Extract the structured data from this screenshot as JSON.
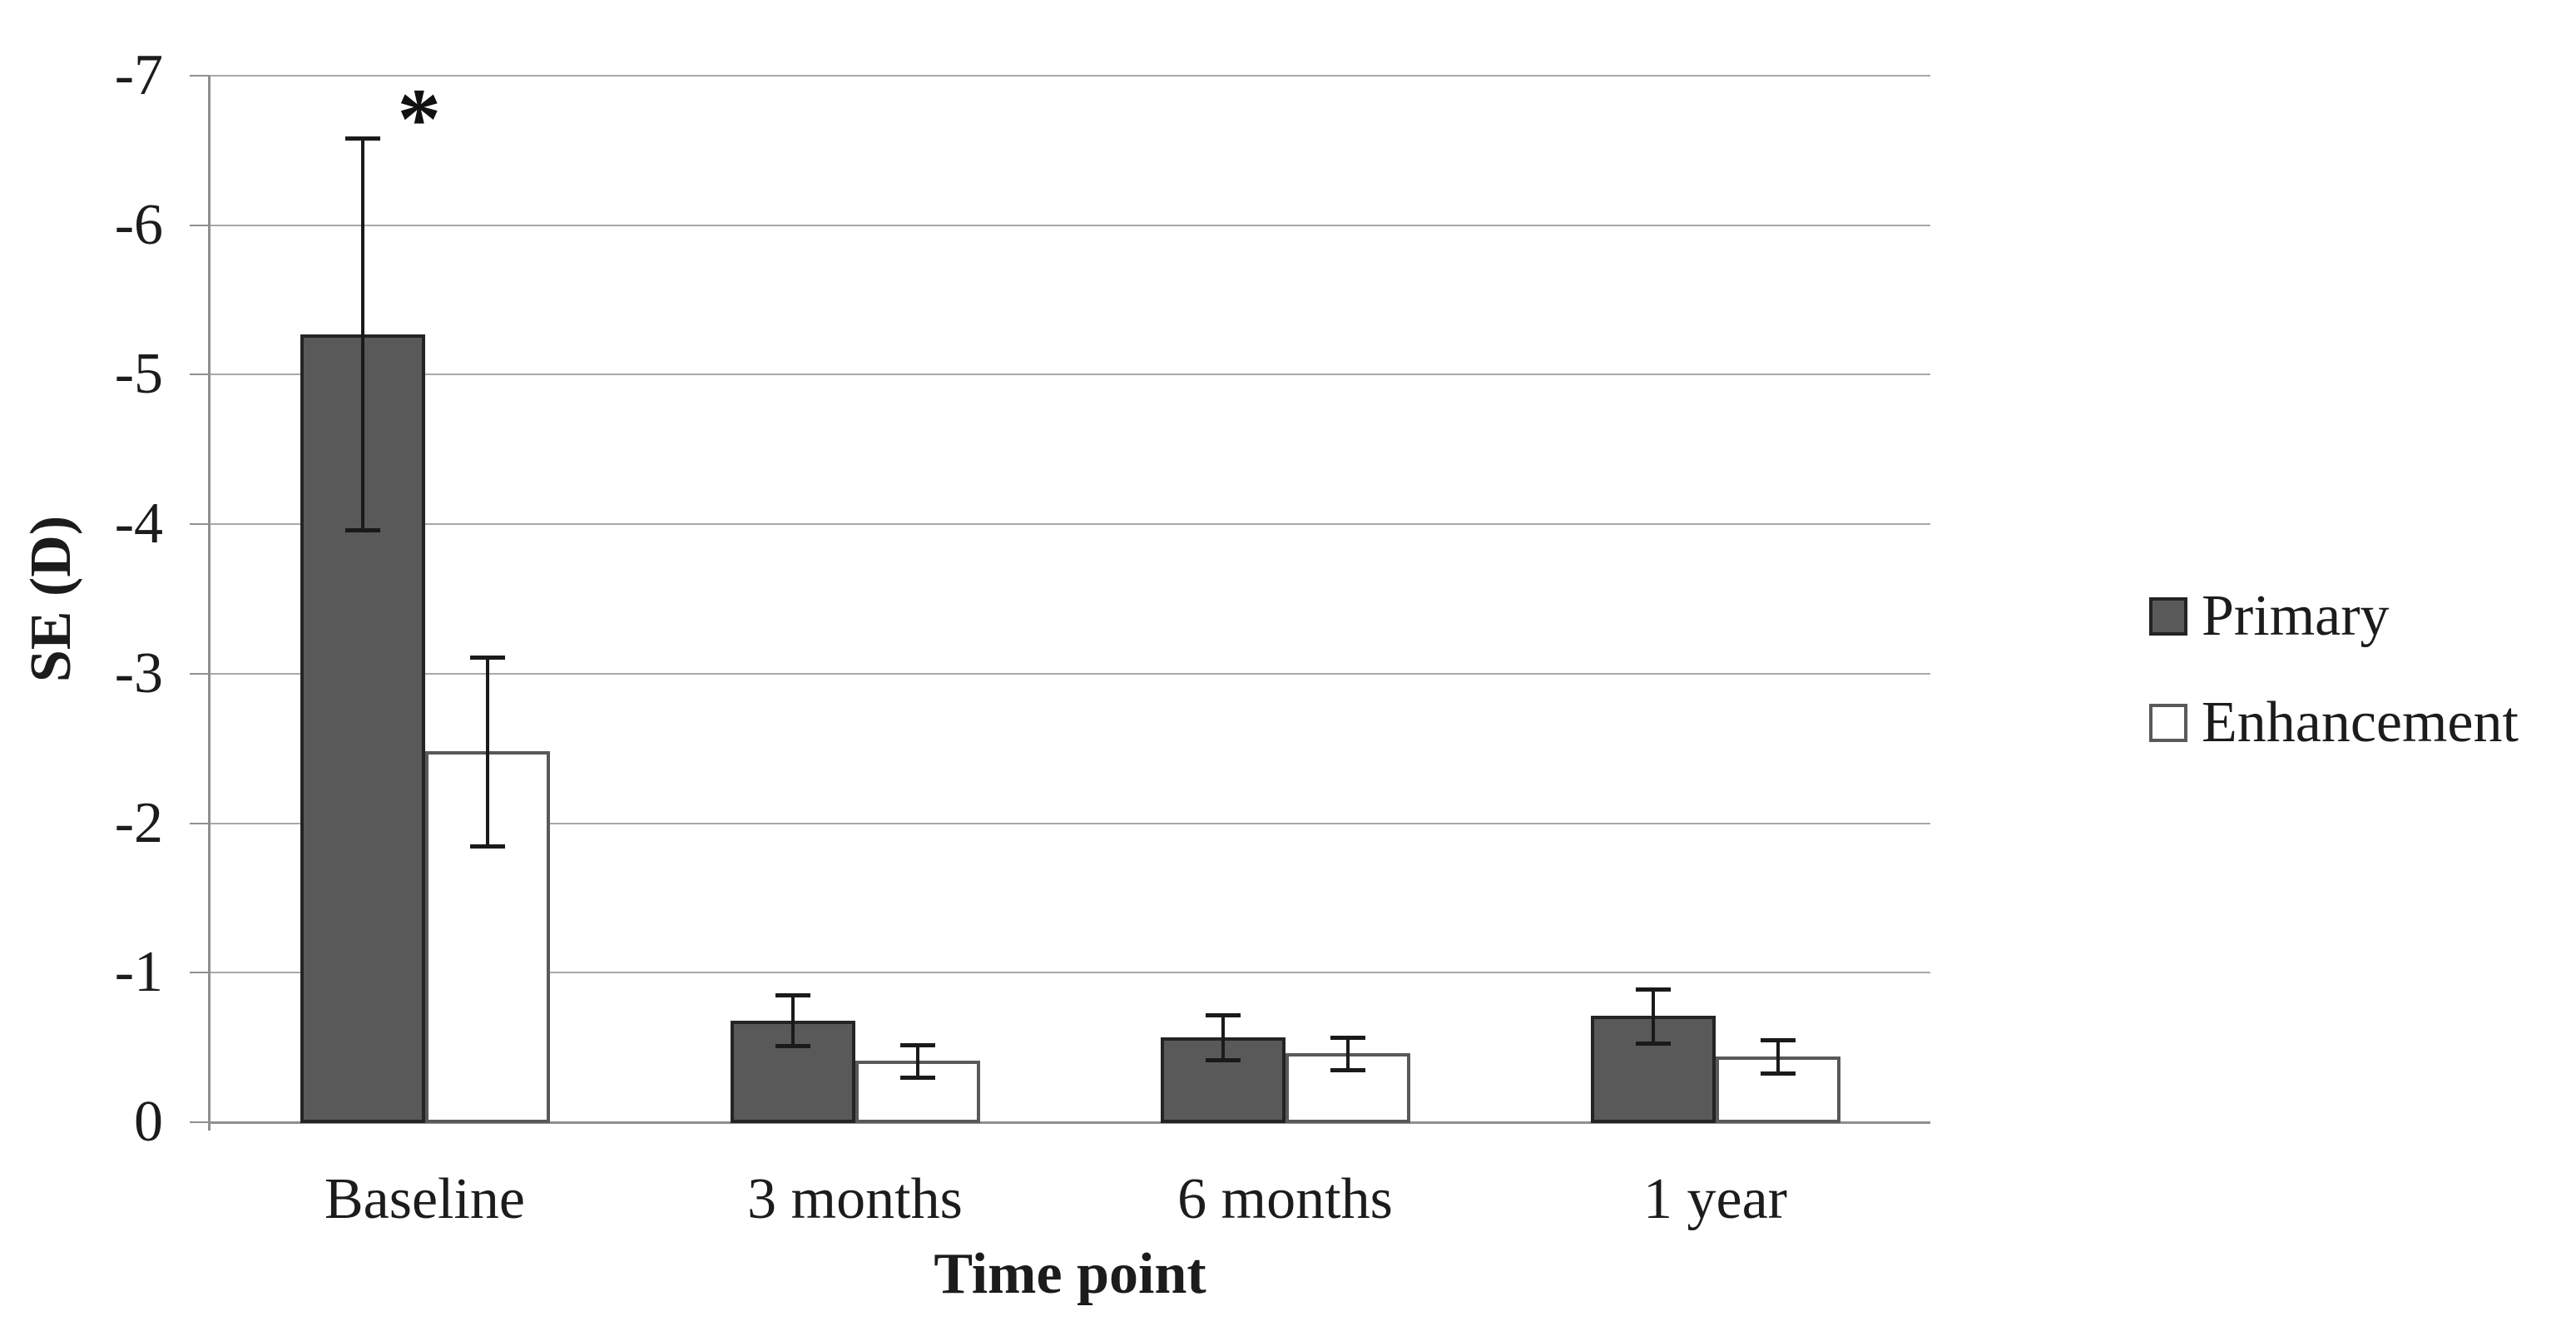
{
  "figure": {
    "background": "#ffffff"
  },
  "chart_data": {
    "type": "bar",
    "title": "",
    "xlabel": "Time point",
    "ylabel": "SE (D)",
    "categories": [
      "Baseline",
      "3 months",
      "6 months",
      "1 year"
    ],
    "series": [
      {
        "name": "Primary",
        "fill": "#595959",
        "border": "#242424",
        "values": [
          -5.27,
          -0.68,
          -0.57,
          -0.71
        ],
        "errors": [
          1.31,
          0.17,
          0.15,
          0.18
        ]
      },
      {
        "name": "Enhancement",
        "fill": "#ffffff",
        "border": "#595959",
        "values": [
          -2.48,
          -0.41,
          -0.46,
          -0.44
        ],
        "errors": [
          0.63,
          0.11,
          0.11,
          0.11
        ]
      }
    ],
    "y_axis": {
      "min": 0,
      "max": -7,
      "step": -1,
      "inverted": true,
      "tick_labels": [
        "-7",
        "-6",
        "-5",
        "-4",
        "-3",
        "-2",
        "-1",
        "0"
      ]
    },
    "legend": {
      "position": "right",
      "entries": [
        "Primary",
        "Enhancement"
      ]
    },
    "grid": true,
    "annotations": [
      {
        "text": "*",
        "series": "Primary",
        "category": "Baseline",
        "location": "above-error-bar"
      }
    ],
    "colors": {
      "gridline": "#a8a8a8",
      "axis": "#8f8f8f",
      "error_bar": "#1a1a1a",
      "text": "#1c1c1c"
    }
  }
}
